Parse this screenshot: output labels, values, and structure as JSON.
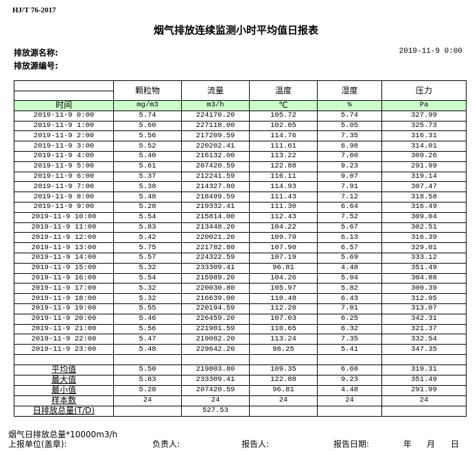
{
  "standard": "HJ/T  76-2017",
  "title": "烟气排放连续监测小时平均值日报表",
  "source_name_label": "排放源名称:",
  "source_code_label": "排放源编号:",
  "report_datetime": "2019-11-9  0:00",
  "table": {
    "headers": [
      "",
      "颗粒物",
      "流量",
      "温度",
      "湿度",
      "压力"
    ],
    "units": [
      "时间",
      "mg/m3",
      "m3/h",
      "℃",
      "%",
      "Pa"
    ],
    "rows": [
      [
        "2019-11-9 0:00",
        "5.74",
        "224170.20",
        "105.72",
        "5.74",
        "327.99"
      ],
      [
        "2019-11-9 1:00",
        "5.60",
        "227118.00",
        "102.05",
        "5.05",
        "325.73"
      ],
      [
        "2019-11-9 2:00",
        "5.56",
        "217209.59",
        "114.76",
        "7.35",
        "316.31"
      ],
      [
        "2019-11-9 3:00",
        "5.52",
        "220202.41",
        "111.61",
        "6.98",
        "314.01"
      ],
      [
        "2019-11-9 4:00",
        "5.40",
        "216132.00",
        "113.22",
        "7.60",
        "309.26"
      ],
      [
        "2019-11-9 5:00",
        "5.61",
        "207420.59",
        "122.88",
        "9.23",
        "291.99"
      ],
      [
        "2019-11-9 6:00",
        "5.37",
        "212241.59",
        "116.11",
        "9.07",
        "319.14"
      ],
      [
        "2019-11-9 7:00",
        "5.38",
        "214327.80",
        "114.93",
        "7.91",
        "307.47"
      ],
      [
        "2019-11-9 8:00",
        "5.48",
        "218499.59",
        "111.43",
        "7.12",
        "318.58"
      ],
      [
        "2019-11-9 9:00",
        "5.28",
        "219332.41",
        "111.30",
        "6.64",
        "316.49"
      ],
      [
        "2019-11-9 10:00",
        "5.54",
        "215814.00",
        "112.43",
        "7.52",
        "309.04"
      ],
      [
        "2019-11-9 11:00",
        "5.83",
        "213448.20",
        "104.22",
        "5.67",
        "302.51"
      ],
      [
        "2019-11-9 12:00",
        "5.42",
        "220021.20",
        "109.79",
        "6.13",
        "316.39"
      ],
      [
        "2019-11-9 13:00",
        "5.75",
        "221782.80",
        "107.90",
        "6.57",
        "329.01"
      ],
      [
        "2019-11-9 14:00",
        "5.57",
        "224322.59",
        "107.19",
        "5.69",
        "333.12"
      ],
      [
        "2019-11-9 15:00",
        "5.32",
        "233309.41",
        "96.81",
        "4.48",
        "351.49"
      ],
      [
        "2019-11-9 16:00",
        "5.54",
        "215989.20",
        "104.26",
        "5.04",
        "304.88"
      ],
      [
        "2019-11-9 17:00",
        "5.32",
        "220030.80",
        "105.97",
        "5.82",
        "300.39"
      ],
      [
        "2019-11-9 18:00",
        "5.32",
        "216639.00",
        "110.48",
        "6.43",
        "312.95"
      ],
      [
        "2019-11-9 19:00",
        "5.55",
        "220194.59",
        "112.20",
        "7.01",
        "313.07"
      ],
      [
        "2019-11-9 20:00",
        "5.46",
        "226459.20",
        "107.03",
        "6.25",
        "342.31"
      ],
      [
        "2019-11-9 21:00",
        "5.56",
        "221901.59",
        "110.65",
        "6.32",
        "321.37"
      ],
      [
        "2019-11-9 22:00",
        "5.47",
        "219082.20",
        "113.24",
        "7.35",
        "332.54"
      ],
      [
        "2019-11-9 23:00",
        "5.48",
        "229642.20",
        "98.25",
        "5.41",
        "347.35"
      ]
    ],
    "stats": [
      [
        "平均值",
        "5.50",
        "219803.80",
        "109.35",
        "6.60",
        "319.31"
      ],
      [
        "最大值",
        "5.83",
        "233309.41",
        "122.88",
        "9.23",
        "351.49"
      ],
      [
        "最小值",
        "5.28",
        "207420.59",
        "96.81",
        "4.48",
        "291.99"
      ],
      [
        "样本数",
        "24",
        "24",
        "24",
        "24",
        "24"
      ],
      [
        "日排放总量(T/D)",
        "",
        "527.53",
        "",
        "",
        ""
      ]
    ],
    "header_bg": "#ccffcc"
  },
  "footer": {
    "note": "烟气日排放总量*10000m3/h",
    "unit_label": "上报单位(盖章):",
    "responsible_label": "负责人:",
    "reporter_label": "报告人:",
    "date_label": "报告日期:",
    "year": "年",
    "month": "月",
    "day": "日"
  }
}
